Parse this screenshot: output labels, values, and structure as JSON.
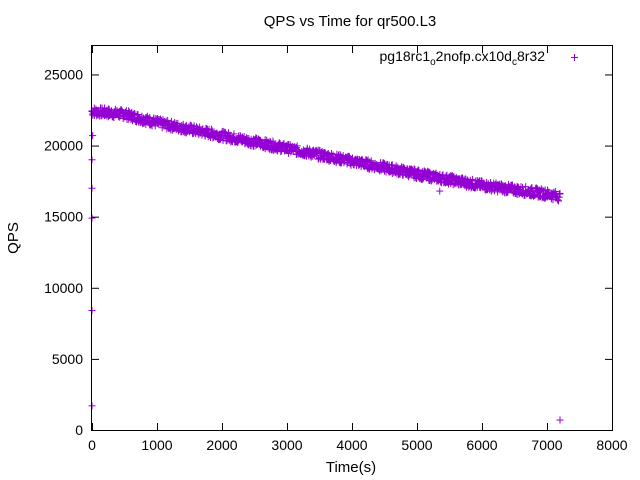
{
  "chart_data": {
    "type": "scatter",
    "title": "QPS vs Time for qr500.L3",
    "xlabel": "Time(s)",
    "ylabel": "QPS",
    "xlim": [
      0,
      8000
    ],
    "ylim": [
      0,
      27000
    ],
    "x_ticks": [
      0,
      1000,
      2000,
      3000,
      4000,
      5000,
      6000,
      7000,
      8000
    ],
    "y_ticks": [
      0,
      5000,
      10000,
      15000,
      20000,
      25000
    ],
    "legend_position": "top-right",
    "marker": "+",
    "series": [
      {
        "name_parts": {
          "a": "pg18rc1",
          "a_sub": "o",
          "b": "2nofp.cx10d",
          "b_sub": "c",
          "c": "8r32"
        },
        "color": "#9400d3",
        "trend": [
          {
            "x": 0,
            "y": 22400
          },
          {
            "x": 500,
            "y": 22200
          },
          {
            "x": 1000,
            "y": 21600
          },
          {
            "x": 2000,
            "y": 20700
          },
          {
            "x": 3000,
            "y": 19800
          },
          {
            "x": 4000,
            "y": 18900
          },
          {
            "x": 5000,
            "y": 18000
          },
          {
            "x": 6000,
            "y": 17200
          },
          {
            "x": 7000,
            "y": 16600
          },
          {
            "x": 7200,
            "y": 16400
          }
        ],
        "outliers": [
          {
            "x": 0,
            "y": 1700
          },
          {
            "x": 0,
            "y": 8400
          },
          {
            "x": 0,
            "y": 14900
          },
          {
            "x": 0,
            "y": 17000
          },
          {
            "x": 0,
            "y": 19000
          },
          {
            "x": 10,
            "y": 20700
          },
          {
            "x": 5350,
            "y": 16800
          },
          {
            "x": 7200,
            "y": 700
          }
        ]
      }
    ]
  }
}
